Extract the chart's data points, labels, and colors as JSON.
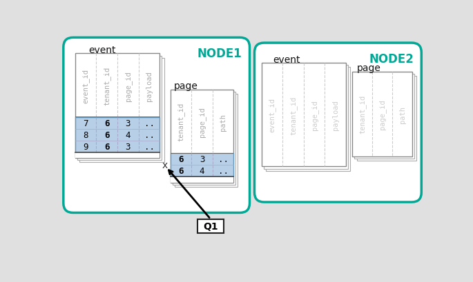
{
  "bg_color": "#e0e0e0",
  "node1_color": "#ffffff",
  "node1_border": "#00a896",
  "node2_color": "#ffffff",
  "node2_border": "#00a896",
  "node1_label": "NODE1",
  "node2_label": "NODE2",
  "node_label_color": "#00a896",
  "event_label": "event",
  "page_label": "page",
  "event_cols": [
    "event_id",
    "tenant_id",
    "page_id",
    "payload"
  ],
  "page_cols": [
    "tenant_id",
    "page_id",
    "path"
  ],
  "event_data_rows": [
    [
      "7",
      "6",
      "3",
      ".."
    ],
    [
      "8",
      "6",
      "4",
      ".."
    ],
    [
      "9",
      "6",
      "3",
      ".."
    ]
  ],
  "page_data_rows": [
    [
      "6",
      "3",
      ".."
    ],
    [
      "6",
      "4",
      ".."
    ]
  ],
  "highlight_color": "#b8cfe8",
  "highlight_border": "#6699bb",
  "q1_label": "Q1",
  "x_label": "x",
  "col_header_color": "#aaaaaa",
  "col_header_color2": "#cccccc",
  "data_text_color": "#111111",
  "bold_col_idx_event": 1,
  "bold_col_idx_page": 0
}
